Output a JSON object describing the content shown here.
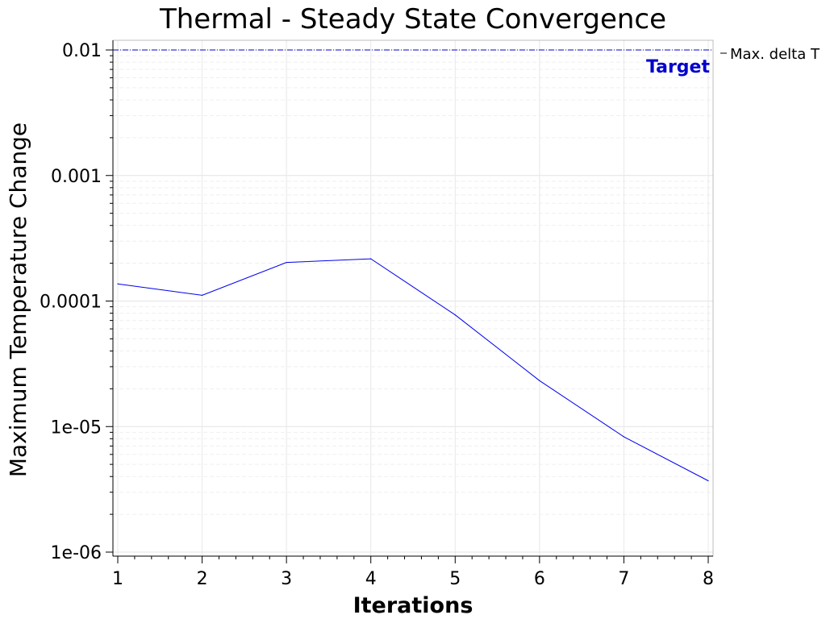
{
  "chart_data": {
    "type": "line",
    "title": "Thermal - Steady State Convergence",
    "xlabel": "Iterations",
    "ylabel": "Maximum Temperature Change",
    "y_scale": "log",
    "xlim": [
      1,
      8
    ],
    "ylim": [
      1e-06,
      0.012
    ],
    "x_ticks": [
      1,
      2,
      3,
      4,
      5,
      6,
      7,
      8
    ],
    "x_tick_labels": [
      "1",
      "2",
      "3",
      "4",
      "5",
      "6",
      "7",
      "8"
    ],
    "y_ticks": [
      1e-06,
      1e-05,
      0.0001,
      0.001,
      0.01
    ],
    "y_tick_labels": [
      "1e-06",
      "1e-05",
      "0.0001",
      "0.001",
      "0.01"
    ],
    "grid": true,
    "legend_position": "top-right outside",
    "series": [
      {
        "name": "Max. delta T",
        "color": "#0000ee",
        "x": [
          1,
          2,
          3,
          4,
          5,
          6,
          7,
          8
        ],
        "values": [
          0.000137,
          0.000111,
          0.000203,
          0.000217,
          7.75e-05,
          2.32e-05,
          8.3e-06,
          3.7e-06
        ]
      }
    ],
    "reference_line": {
      "label": "Target",
      "value": 0.01,
      "color": "#0000cc",
      "style": "dash-dot"
    }
  }
}
